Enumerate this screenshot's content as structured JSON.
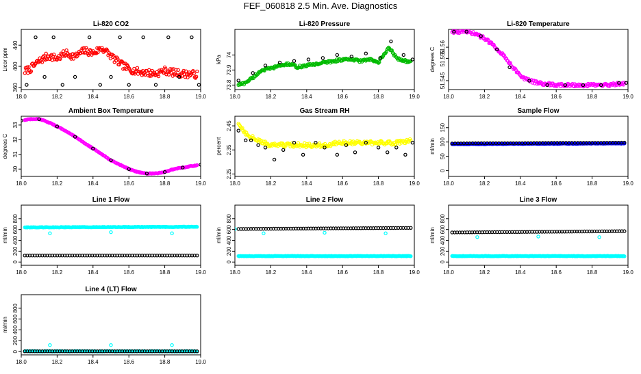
{
  "page": {
    "title": "FEF_060818  2.5 Min. Ave. Diagnostics"
  },
  "chart_data": [
    {
      "id": "co2",
      "type": "scatter",
      "title": "Li-820 CO2",
      "xlabel": "",
      "ylabel": "Licor ppm",
      "xlim": [
        18.0,
        19.0
      ],
      "ylim": [
        356,
        470
      ],
      "xticks": [
        18.0,
        18.2,
        18.4,
        18.6,
        18.8,
        19.0
      ],
      "yticks": [
        360,
        400,
        440
      ],
      "series": [
        {
          "name": "raw",
          "color": "#ff0000",
          "x": [
            18.0,
            18.05,
            18.1,
            18.15,
            18.2,
            18.25,
            18.3,
            18.35,
            18.4,
            18.45,
            18.5,
            18.55,
            18.6,
            18.65,
            18.7,
            18.75,
            18.8,
            18.85,
            18.9,
            18.95,
            19.0
          ],
          "y": [
            388,
            395,
            410,
            420,
            415,
            425,
            418,
            430,
            425,
            435,
            420,
            405,
            395,
            390,
            388,
            386,
            392,
            388,
            386,
            385,
            384
          ]
        },
        {
          "name": "average",
          "color": "#000000",
          "x": [
            18.03,
            18.08,
            18.13,
            18.18,
            18.23,
            18.3,
            18.38,
            18.44,
            18.5,
            18.55,
            18.6,
            18.68,
            18.75,
            18.82,
            18.88,
            18.95,
            18.99
          ],
          "y": [
            365,
            455,
            380,
            455,
            365,
            380,
            455,
            365,
            380,
            455,
            365,
            455,
            365,
            455,
            380,
            455,
            365
          ]
        }
      ]
    },
    {
      "id": "pressure",
      "type": "scatter",
      "title": "Li-820 Pressure",
      "xlabel": "",
      "ylabel": "kPa",
      "xlim": [
        18.0,
        19.0
      ],
      "ylim": [
        73.77,
        74.17
      ],
      "xticks": [
        18.0,
        18.2,
        18.4,
        18.6,
        18.8,
        19.0
      ],
      "yticks": [
        73.8,
        73.9,
        74.0
      ],
      "series": [
        {
          "name": "raw",
          "color": "#00bb00",
          "x": [
            18.0,
            18.05,
            18.1,
            18.15,
            18.2,
            18.25,
            18.3,
            18.35,
            18.4,
            18.45,
            18.5,
            18.55,
            18.6,
            18.65,
            18.7,
            18.75,
            18.8,
            18.83,
            18.86,
            18.9,
            18.95,
            19.0
          ],
          "y": [
            73.8,
            73.81,
            73.85,
            73.9,
            73.91,
            73.93,
            73.94,
            73.92,
            73.93,
            73.94,
            73.95,
            73.96,
            73.97,
            73.97,
            73.96,
            73.97,
            73.95,
            74.0,
            74.05,
            73.98,
            73.96,
            73.95
          ]
        },
        {
          "name": "average",
          "color": "#000000",
          "x": [
            18.02,
            18.1,
            18.17,
            18.25,
            18.33,
            18.41,
            18.49,
            18.57,
            18.65,
            18.73,
            18.81,
            18.87,
            18.94,
            18.99
          ],
          "y": [
            73.83,
            73.88,
            73.93,
            73.95,
            73.96,
            73.97,
            73.98,
            74.0,
            73.99,
            74.01,
            73.98,
            74.09,
            74.0,
            73.97
          ]
        }
      ]
    },
    {
      "id": "licor-temp",
      "type": "scatter",
      "title": "Li-820 Temperature",
      "xlabel": "",
      "ylabel": "degrees C",
      "xlim": [
        18.0,
        19.0
      ],
      "ylim": [
        51.541,
        51.568
      ],
      "xticks": [
        18.0,
        18.2,
        18.4,
        18.6,
        18.8,
        19.0
      ],
      "yticks": [
        51.545,
        51.555,
        51.56
      ],
      "series": [
        {
          "name": "raw",
          "color": "#ff00ff",
          "x": [
            18.0,
            18.05,
            18.1,
            18.15,
            18.2,
            18.25,
            18.3,
            18.35,
            18.4,
            18.45,
            18.5,
            18.6,
            18.7,
            18.8,
            18.9,
            19.0
          ],
          "y": [
            51.567,
            51.567,
            51.567,
            51.566,
            51.564,
            51.561,
            51.557,
            51.552,
            51.547,
            51.545,
            51.544,
            51.543,
            51.543,
            51.543,
            51.543,
            51.544
          ]
        },
        {
          "name": "average",
          "color": "#000000",
          "x": [
            18.03,
            18.1,
            18.18,
            18.27,
            18.34,
            18.45,
            18.55,
            18.65,
            18.75,
            18.85,
            18.95,
            18.99
          ],
          "y": [
            51.567,
            51.567,
            51.565,
            51.559,
            51.551,
            51.545,
            51.543,
            51.543,
            51.543,
            51.543,
            51.544,
            51.544
          ]
        }
      ]
    },
    {
      "id": "box-temp",
      "type": "scatter",
      "title": "Ambient Box Temperature",
      "xlabel": "",
      "ylabel": "degrees C",
      "xlim": [
        18.0,
        19.0
      ],
      "ylim": [
        29.5,
        33.6
      ],
      "xticks": [
        18.0,
        18.2,
        18.4,
        18.6,
        18.8,
        19.0
      ],
      "yticks": [
        30,
        31,
        32,
        33
      ],
      "series": [
        {
          "name": "raw",
          "color": "#ff00ff",
          "x": [
            18.0,
            18.05,
            18.1,
            18.15,
            18.2,
            18.25,
            18.3,
            18.35,
            18.4,
            18.45,
            18.5,
            18.55,
            18.6,
            18.65,
            18.7,
            18.75,
            18.8,
            18.85,
            18.9,
            18.95,
            19.0
          ],
          "y": [
            33.3,
            33.4,
            33.4,
            33.2,
            32.9,
            32.6,
            32.2,
            31.8,
            31.4,
            31.0,
            30.6,
            30.3,
            30.0,
            29.8,
            29.7,
            29.7,
            29.8,
            30.0,
            30.1,
            30.2,
            30.3
          ]
        },
        {
          "name": "average",
          "color": "#000000",
          "x": [
            18.0,
            18.1,
            18.2,
            18.3,
            18.4,
            18.5,
            18.6,
            18.7,
            18.8,
            18.9,
            19.0
          ],
          "y": [
            33.3,
            33.4,
            32.9,
            32.2,
            31.4,
            30.6,
            30.0,
            29.7,
            29.8,
            30.1,
            30.3
          ]
        }
      ]
    },
    {
      "id": "rh",
      "type": "scatter",
      "title": "Gas Stream RH",
      "xlabel": "",
      "ylabel": "percent",
      "xlim": [
        18.0,
        19.0
      ],
      "ylim": [
        2.24,
        2.49
      ],
      "xticks": [
        18.0,
        18.2,
        18.4,
        18.6,
        18.8,
        19.0
      ],
      "yticks": [
        2.25,
        2.35,
        2.45
      ],
      "series": [
        {
          "name": "raw",
          "color": "#ffff00",
          "x": [
            18.0,
            18.03,
            18.06,
            18.1,
            18.15,
            18.2,
            18.3,
            18.4,
            18.5,
            18.6,
            18.7,
            18.8,
            18.9,
            19.0
          ],
          "y": [
            2.48,
            2.45,
            2.42,
            2.4,
            2.38,
            2.37,
            2.37,
            2.37,
            2.37,
            2.38,
            2.38,
            2.38,
            2.38,
            2.39
          ]
        },
        {
          "name": "average",
          "color": "#000000",
          "x": [
            18.02,
            18.06,
            18.09,
            18.13,
            18.17,
            18.22,
            18.27,
            18.33,
            18.38,
            18.45,
            18.5,
            18.57,
            18.62,
            18.67,
            18.73,
            18.8,
            18.85,
            18.9,
            18.95,
            18.99
          ],
          "y": [
            2.43,
            2.39,
            2.39,
            2.37,
            2.36,
            2.31,
            2.35,
            2.38,
            2.33,
            2.38,
            2.36,
            2.33,
            2.37,
            2.34,
            2.38,
            2.36,
            2.34,
            2.36,
            2.33,
            2.38
          ]
        }
      ]
    },
    {
      "id": "sample-flow",
      "type": "scatter",
      "title": "Sample Flow",
      "xlabel": "",
      "ylabel": "ml/min",
      "xlim": [
        18.0,
        19.0
      ],
      "ylim": [
        -20,
        190
      ],
      "xticks": [
        18.0,
        18.2,
        18.4,
        18.6,
        18.8,
        19.0
      ],
      "yticks": [
        0,
        50,
        100,
        150
      ],
      "series": [
        {
          "name": "raw",
          "color": "#0000ff",
          "x": [
            18.0,
            18.2,
            18.4,
            18.6,
            18.8,
            19.0
          ],
          "y": [
            93,
            93,
            94,
            94,
            95,
            95
          ]
        },
        {
          "name": "average",
          "color": "#000000",
          "x": [
            18.0,
            18.2,
            18.4,
            18.6,
            18.8,
            19.0
          ],
          "y": [
            95,
            96,
            96,
            97,
            97,
            98
          ]
        }
      ]
    },
    {
      "id": "line1",
      "type": "scatter",
      "title": "Line 1 Flow",
      "xlabel": "",
      "ylabel": "ml/min",
      "xlim": [
        18.0,
        19.0
      ],
      "ylim": [
        -60,
        1050
      ],
      "xticks": [
        18.0,
        18.2,
        18.4,
        18.6,
        18.8,
        19.0
      ],
      "yticks": [
        0,
        200,
        400,
        600,
        800
      ],
      "series": [
        {
          "name": "raw",
          "color": "#00ffff",
          "x": [
            18.0,
            19.0
          ],
          "y": [
            640,
            650
          ]
        },
        {
          "name": "average",
          "color": "#000000",
          "x": [
            18.0,
            19.0
          ],
          "y": [
            120,
            120
          ]
        },
        {
          "name": "outliers",
          "color": "#00ffff",
          "x": [
            18.16,
            18.5,
            18.84
          ],
          "y": [
            530,
            550,
            530
          ]
        }
      ]
    },
    {
      "id": "line2",
      "type": "scatter",
      "title": "Line 2 Flow",
      "xlabel": "",
      "ylabel": "ml/min",
      "xlim": [
        18.0,
        19.0
      ],
      "ylim": [
        -60,
        1050
      ],
      "xticks": [
        18.0,
        18.2,
        18.4,
        18.6,
        18.8,
        19.0
      ],
      "yticks": [
        0,
        200,
        400,
        600,
        800
      ],
      "series": [
        {
          "name": "raw",
          "color": "#00ffff",
          "x": [
            18.0,
            19.0
          ],
          "y": [
            110,
            110
          ]
        },
        {
          "name": "average",
          "color": "#000000",
          "x": [
            18.0,
            19.0
          ],
          "y": [
            610,
            630
          ]
        },
        {
          "name": "outliers",
          "color": "#00ffff",
          "x": [
            18.0,
            18.16,
            18.5,
            18.84
          ],
          "y": [
            610,
            530,
            540,
            530
          ]
        }
      ]
    },
    {
      "id": "line3",
      "type": "scatter",
      "title": "Line 3 Flow",
      "xlabel": "",
      "ylabel": "ml/min",
      "xlim": [
        18.0,
        19.0
      ],
      "ylim": [
        -60,
        1050
      ],
      "xticks": [
        18.0,
        18.2,
        18.4,
        18.6,
        18.8,
        19.0
      ],
      "yticks": [
        0,
        200,
        400,
        600,
        800
      ],
      "series": [
        {
          "name": "raw",
          "color": "#00ffff",
          "x": [
            18.0,
            19.0
          ],
          "y": [
            110,
            110
          ]
        },
        {
          "name": "average",
          "color": "#000000",
          "x": [
            18.0,
            19.0
          ],
          "y": [
            545,
            570
          ]
        },
        {
          "name": "outliers",
          "color": "#00ffff",
          "x": [
            18.16,
            18.5,
            18.84
          ],
          "y": [
            460,
            470,
            460
          ]
        }
      ]
    },
    {
      "id": "line4",
      "type": "scatter",
      "title": "Line 4 (LT) Flow",
      "xlabel": "",
      "ylabel": "ml/min",
      "xlim": [
        18.0,
        19.0
      ],
      "ylim": [
        -60,
        1050
      ],
      "xticks": [
        18.0,
        18.2,
        18.4,
        18.6,
        18.8,
        19.0
      ],
      "yticks": [
        0,
        200,
        400,
        600,
        800
      ],
      "series": [
        {
          "name": "raw",
          "color": "#00ffff",
          "x": [
            18.0,
            19.0
          ],
          "y": [
            5,
            5
          ]
        },
        {
          "name": "average",
          "color": "#000000",
          "x": [
            18.0,
            19.0
          ],
          "y": [
            5,
            5
          ]
        },
        {
          "name": "outliers",
          "color": "#00ffff",
          "x": [
            18.16,
            18.5,
            18.84
          ],
          "y": [
            120,
            120,
            120
          ]
        }
      ]
    }
  ]
}
